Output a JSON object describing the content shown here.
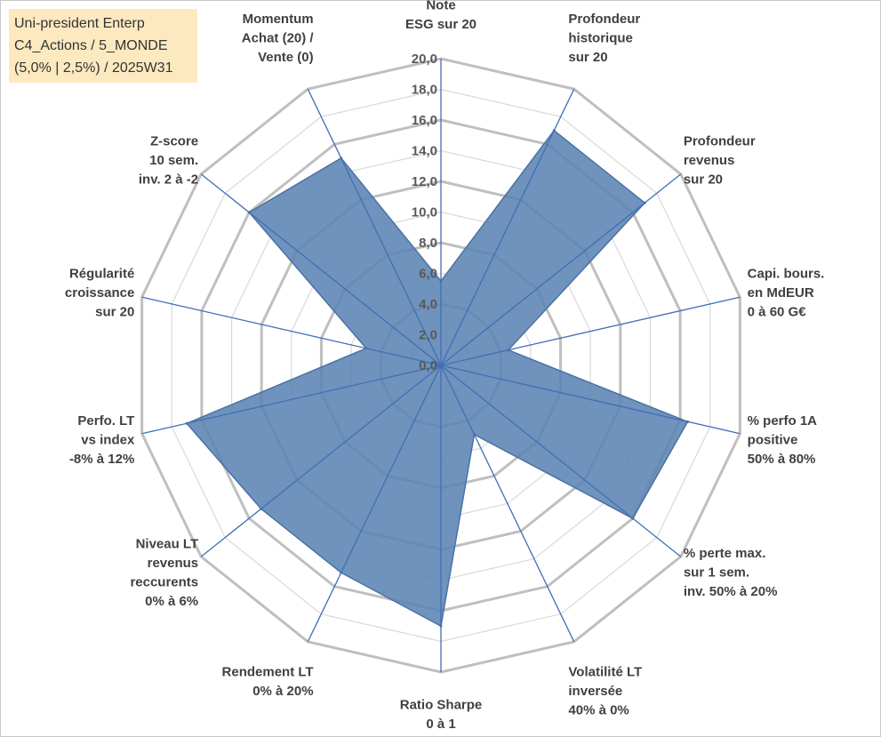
{
  "info_box": {
    "line1": "Uni-president Enterp",
    "line2": "C4_Actions / 5_MONDE",
    "line3": "(5,0% | 2,5%) / 2025W31"
  },
  "colors": {
    "fill": "#5b84b4",
    "fill_edge": "#4a72a3",
    "spokes": "#3f6fb5",
    "rings_outer": "#bfbfbf",
    "rings_inner": "#d9d9d9",
    "info_bg": "#fde9c0"
  },
  "chart_data": {
    "type": "radar",
    "title": "",
    "rlim": [
      0,
      20
    ],
    "r_ticks": [
      "0,0",
      "2,0",
      "4,0",
      "6,0",
      "8,0",
      "10,0",
      "12,0",
      "14,0",
      "16,0",
      "18,0",
      "20,0"
    ],
    "grid": true,
    "axes": [
      {
        "label": [
          "Note",
          "ESG sur 20"
        ]
      },
      {
        "label": [
          "Profondeur",
          "historique",
          "sur 20"
        ]
      },
      {
        "label": [
          "Profondeur",
          "revenus",
          "sur 20"
        ]
      },
      {
        "label": [
          "Capi. bours.",
          "en MdEUR",
          "0 à 60 G€"
        ]
      },
      {
        "label": [
          "% perfo 1A",
          "positive",
          "50% à 80%"
        ]
      },
      {
        "label": [
          "% perte max.",
          "sur 1 sem.",
          "inv. 50% à 20%"
        ]
      },
      {
        "label": [
          "Volatilité LT",
          "inversée",
          "40% à 0%"
        ]
      },
      {
        "label": [
          "Ratio Sharpe",
          "0 à 1"
        ]
      },
      {
        "label": [
          "Rendement LT",
          "0% à 20%"
        ]
      },
      {
        "label": [
          "Niveau LT",
          "revenus",
          "reccurents",
          "0% à 6%"
        ]
      },
      {
        "label": [
          "Perfo. LT",
          "vs index",
          "-8% à 12%"
        ]
      },
      {
        "label": [
          "Régularité",
          "croissance",
          "sur 20"
        ]
      },
      {
        "label": [
          "Z-score",
          "10 sem.",
          "inv. 2 à -2"
        ]
      },
      {
        "label": [
          "Momentum",
          "Achat (20) /",
          "Vente (0)"
        ]
      }
    ],
    "series": [
      {
        "values": [
          5.5,
          17.0,
          17.0,
          4.5,
          16.5,
          16.0,
          5.0,
          17.0,
          15.0,
          15.0,
          17.0,
          5.0,
          16.0,
          15.0
        ]
      }
    ]
  }
}
